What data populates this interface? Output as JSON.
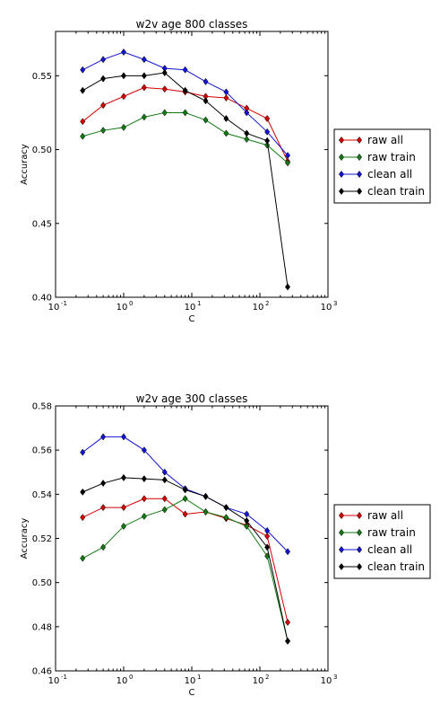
{
  "colors": {
    "raw_all": "#d40000",
    "raw_train": "#137a13",
    "clean_all": "#1414d2",
    "clean_train": "#000000"
  },
  "chart_data": [
    {
      "type": "line",
      "title": "w2v age 800 classes",
      "xlabel": "C",
      "ylabel": "Accuracy",
      "xscale": "log",
      "xlim": [
        0.1,
        1000
      ],
      "ylim": [
        0.4,
        0.58
      ],
      "yticks": [
        "0.40",
        "0.45",
        "0.50",
        "0.55"
      ],
      "xticks": [
        {
          "base": "10",
          "exp": "-1"
        },
        {
          "base": "10",
          "exp": "0"
        },
        {
          "base": "10",
          "exp": "1"
        },
        {
          "base": "10",
          "exp": "2"
        },
        {
          "base": "10",
          "exp": "3"
        }
      ],
      "legend_position": "right",
      "x": [
        0.25,
        0.5,
        1,
        2,
        4,
        8,
        16,
        32,
        64,
        128,
        256
      ],
      "series": [
        {
          "name": "raw all",
          "color_key": "raw_all",
          "values": [
            0.519,
            0.53,
            0.536,
            0.542,
            0.541,
            0.539,
            0.536,
            0.535,
            0.528,
            0.521,
            0.492
          ]
        },
        {
          "name": "raw train",
          "color_key": "raw_train",
          "values": [
            0.509,
            0.513,
            0.515,
            0.522,
            0.525,
            0.525,
            0.52,
            0.511,
            0.507,
            0.503,
            0.491
          ]
        },
        {
          "name": "clean all",
          "color_key": "clean_all",
          "values": [
            0.554,
            0.561,
            0.566,
            0.561,
            0.555,
            0.554,
            0.546,
            0.539,
            0.525,
            0.512,
            0.496
          ]
        },
        {
          "name": "clean train",
          "color_key": "clean_train",
          "values": [
            0.54,
            0.548,
            0.55,
            0.55,
            0.552,
            0.54,
            0.533,
            0.521,
            0.511,
            0.506,
            0.407
          ]
        }
      ]
    },
    {
      "type": "line",
      "title": "w2v age 300 classes",
      "xlabel": "C",
      "ylabel": "Accuracy",
      "xscale": "log",
      "xlim": [
        0.1,
        1000
      ],
      "ylim": [
        0.46,
        0.58
      ],
      "yticks": [
        "0.46",
        "0.48",
        "0.50",
        "0.52",
        "0.54",
        "0.56",
        "0.58"
      ],
      "xticks": [
        {
          "base": "10",
          "exp": "-1"
        },
        {
          "base": "10",
          "exp": "0"
        },
        {
          "base": "10",
          "exp": "1"
        },
        {
          "base": "10",
          "exp": "2"
        },
        {
          "base": "10",
          "exp": "3"
        }
      ],
      "legend_position": "right",
      "x": [
        0.25,
        0.5,
        1,
        2,
        4,
        8,
        16,
        32,
        64,
        128,
        256
      ],
      "series": [
        {
          "name": "raw all",
          "color_key": "raw_all",
          "values": [
            0.5295,
            0.534,
            0.534,
            0.538,
            0.538,
            0.531,
            0.532,
            0.529,
            0.526,
            0.521,
            0.482
          ]
        },
        {
          "name": "raw train",
          "color_key": "raw_train",
          "values": [
            0.511,
            0.516,
            0.5255,
            0.53,
            0.533,
            0.538,
            0.532,
            0.5295,
            0.5255,
            0.512,
            0.4735
          ]
        },
        {
          "name": "clean all",
          "color_key": "clean_all",
          "values": [
            0.559,
            0.566,
            0.566,
            0.56,
            0.55,
            0.5425,
            0.539,
            0.534,
            0.531,
            0.5235,
            0.514
          ]
        },
        {
          "name": "clean train",
          "color_key": "clean_train",
          "values": [
            0.541,
            0.545,
            0.5475,
            0.547,
            0.5465,
            0.542,
            0.539,
            0.534,
            0.528,
            0.516,
            0.4735
          ]
        }
      ]
    }
  ]
}
